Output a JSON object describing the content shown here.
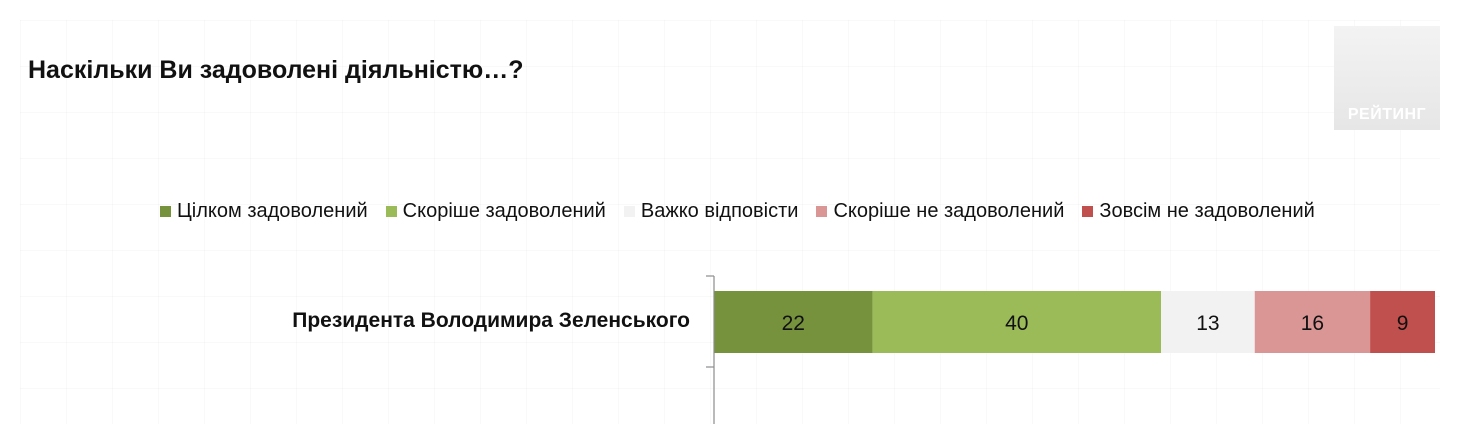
{
  "title": "Наскільки Ви задоволені діяльністю…?",
  "logo": {
    "text": "РЕЙТИНГ"
  },
  "chart_data": {
    "type": "bar",
    "orientation": "horizontal",
    "stacked": true,
    "categories": [
      "Президента Володимира Зеленського"
    ],
    "series": [
      {
        "name": "Цілком задоволений",
        "values": [
          22
        ],
        "color": "#76923c"
      },
      {
        "name": "Скоріше задоволений",
        "values": [
          40
        ],
        "color": "#9bbb59"
      },
      {
        "name": "Важко відповісти",
        "values": [
          13
        ],
        "color": "#f2f2f2"
      },
      {
        "name": "Скоріше не задоволений",
        "values": [
          16
        ],
        "color": "#d99694"
      },
      {
        "name": "Зовсім не задоволений",
        "values": [
          9
        ],
        "color": "#c0504d"
      }
    ],
    "data_labels": [
      "22",
      "40",
      "13",
      "16",
      "9"
    ],
    "xlim": [
      0,
      100
    ],
    "legend_position": "top",
    "grid": false
  }
}
